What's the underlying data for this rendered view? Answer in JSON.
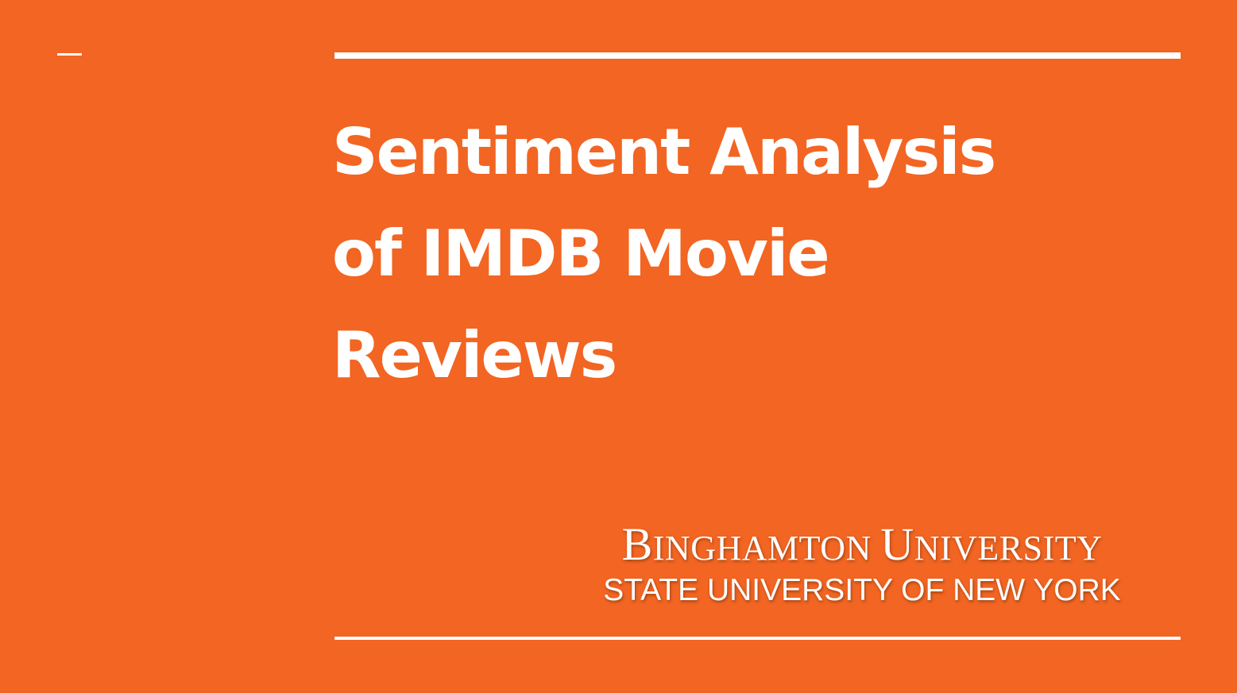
{
  "slide": {
    "background_color": "#F26522",
    "rule_color": "#FFFFFF",
    "title_lines": [
      "Sentiment Analysis",
      "of IMDB Movie",
      "Reviews"
    ],
    "logo": {
      "name_parts": [
        {
          "cap": "B",
          "rest": "INGHAMTON"
        },
        {
          "cap": "U",
          "rest": "NIVERSITY"
        }
      ],
      "subtitle": "STATE UNIVERSITY OF NEW YORK"
    }
  }
}
